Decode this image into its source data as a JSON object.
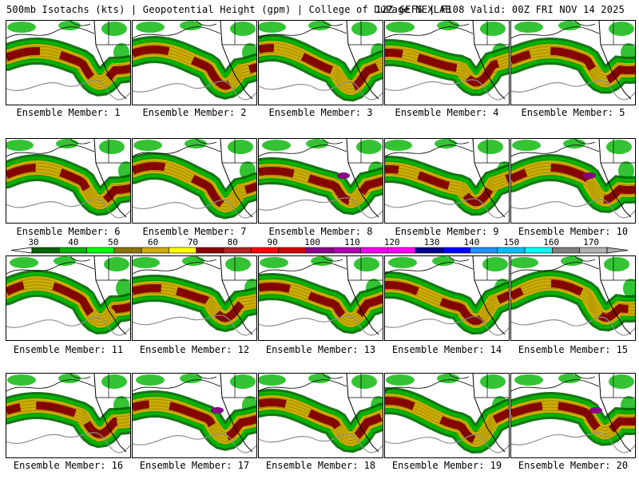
{
  "header": {
    "left": "500mb Isotachs (kts) | Geopotential Height (gpm) | College of DuPage NEXLAB",
    "right": "12Z GEFS | F108 Valid: 00Z FRI NOV 14 2025"
  },
  "panel_label_prefix": "Ensemble Member: ",
  "members": [
    "1",
    "2",
    "3",
    "4",
    "5",
    "6",
    "7",
    "8",
    "9",
    "10",
    "11",
    "12",
    "13",
    "14",
    "15",
    "16",
    "17",
    "18",
    "19",
    "20"
  ],
  "colorbar": {
    "labels": [
      "30",
      "40",
      "50",
      "60",
      "70",
      "80",
      "90",
      "100",
      "110",
      "120",
      "130",
      "140",
      "150",
      "160",
      "170"
    ],
    "colors": [
      "#006400",
      "#00b400",
      "#00ff00",
      "#8b7500",
      "#cdad00",
      "#ffff00",
      "#8b0000",
      "#b22222",
      "#ff0000",
      "#cd0000",
      "#8b008b",
      "#b000b0",
      "#ee00ee",
      "#ff00ff",
      "#00008b",
      "#0000ff",
      "#1e90ff",
      "#00bfff",
      "#00ffff",
      "#808080",
      "#b0b0b0"
    ]
  },
  "field_colors": {
    "outline": "#000000",
    "height_contour": "#909090",
    "jet_core": "#8b0000",
    "jet_inner": "#cdad00",
    "jet_outer": "#00b400",
    "jet_edge": "#006400",
    "jet_max": "#8b008b"
  }
}
